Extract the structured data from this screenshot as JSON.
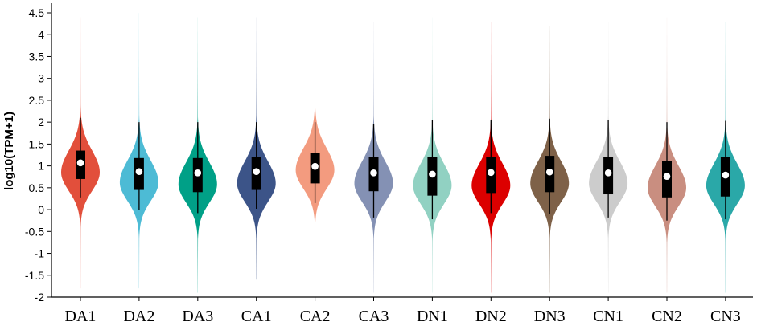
{
  "chart_data": {
    "type": "violin",
    "title": "",
    "xlabel": "",
    "ylabel": "log10(TPM+1)",
    "ylim": [
      -2,
      4.5
    ],
    "yticks": [
      "-2",
      "-1.5",
      "-1",
      "-0.5",
      "0",
      "0.5",
      "1",
      "1.5",
      "2",
      "2.5",
      "3",
      "3.5",
      "4",
      "4.5"
    ],
    "grid": false,
    "legend": "none",
    "categories": [
      "DA1",
      "DA2",
      "DA3",
      "CA1",
      "CA2",
      "CA3",
      "DN1",
      "DN2",
      "DN3",
      "CN1",
      "CN2",
      "CN3"
    ],
    "series": [
      {
        "category": "DA1",
        "color": "#e24f3b",
        "min": -1.8,
        "max": 4.4,
        "q1": 0.7,
        "median": 1.07,
        "q3": 1.35,
        "whisker_low": 0.28,
        "whisker_high": 2.1,
        "mode": 0.85
      },
      {
        "category": "DA2",
        "color": "#4dbbd5",
        "min": -1.8,
        "max": 4.5,
        "q1": 0.45,
        "median": 0.87,
        "q3": 1.18,
        "whisker_low": 0.0,
        "whisker_high": 2.0,
        "mode": 0.62
      },
      {
        "category": "DA3",
        "color": "#00a087",
        "min": -1.9,
        "max": 4.4,
        "q1": 0.4,
        "median": 0.84,
        "q3": 1.18,
        "whisker_low": -0.08,
        "whisker_high": 2.0,
        "mode": 0.58
      },
      {
        "category": "CA1",
        "color": "#3c5488",
        "min": -1.6,
        "max": 4.4,
        "q1": 0.45,
        "median": 0.87,
        "q3": 1.2,
        "whisker_low": 0.02,
        "whisker_high": 2.0,
        "mode": 0.6
      },
      {
        "category": "CA2",
        "color": "#f39b7f",
        "min": -1.6,
        "max": 4.3,
        "q1": 0.6,
        "median": 0.99,
        "q3": 1.3,
        "whisker_low": 0.15,
        "whisker_high": 2.0,
        "mode": 0.9
      },
      {
        "category": "CA3",
        "color": "#8491b4",
        "min": -1.9,
        "max": 4.3,
        "q1": 0.42,
        "median": 0.84,
        "q3": 1.2,
        "whisker_low": -0.18,
        "whisker_high": 1.95,
        "mode": 0.6
      },
      {
        "category": "DN1",
        "color": "#91d1c2",
        "min": -1.9,
        "max": 4.4,
        "q1": 0.32,
        "median": 0.81,
        "q3": 1.2,
        "whisker_low": -0.22,
        "whisker_high": 2.05,
        "mode": 0.55
      },
      {
        "category": "DN2",
        "color": "#dc0000",
        "min": -1.9,
        "max": 4.3,
        "q1": 0.38,
        "median": 0.85,
        "q3": 1.2,
        "whisker_low": -0.08,
        "whisker_high": 2.05,
        "mode": 0.55
      },
      {
        "category": "DN3",
        "color": "#7e6148",
        "min": -1.9,
        "max": 4.2,
        "q1": 0.4,
        "median": 0.86,
        "q3": 1.23,
        "whisker_low": -0.1,
        "whisker_high": 2.08,
        "mode": 0.6
      },
      {
        "category": "CN1",
        "color": "#cccccc",
        "min": -1.9,
        "max": 4.3,
        "q1": 0.35,
        "median": 0.84,
        "q3": 1.2,
        "whisker_low": -0.18,
        "whisker_high": 2.05,
        "mode": 0.6
      },
      {
        "category": "CN2",
        "color": "#c98e80",
        "min": -1.9,
        "max": 4.4,
        "q1": 0.28,
        "median": 0.76,
        "q3": 1.12,
        "whisker_low": -0.25,
        "whisker_high": 2.0,
        "mode": 0.5
      },
      {
        "category": "CN3",
        "color": "#2aa8a8",
        "min": -1.9,
        "max": 4.3,
        "q1": 0.3,
        "median": 0.79,
        "q3": 1.2,
        "whisker_low": -0.22,
        "whisker_high": 2.03,
        "mode": 0.55
      }
    ]
  }
}
